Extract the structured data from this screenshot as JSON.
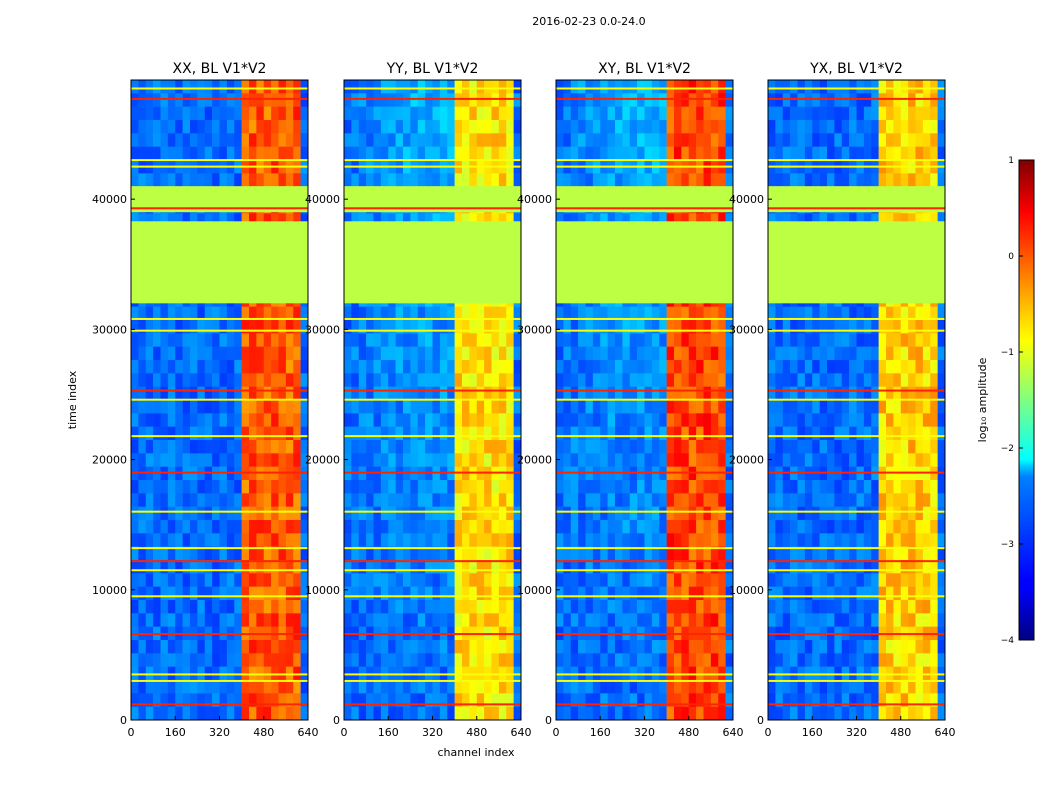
{
  "figure": {
    "suptitle": "2016-02-23 0.0-24.0"
  },
  "chart_data": {
    "type": "heatmap",
    "panels": [
      {
        "title": "XX, BL V1*V2",
        "dominant_band_level": 0.1
      },
      {
        "title": "YY, BL V1*V2",
        "dominant_band_level": -0.6
      },
      {
        "title": "XY, BL V1*V2",
        "dominant_band_level": 0.2
      },
      {
        "title": "YX, BL V1*V2",
        "dominant_band_level": -0.5
      }
    ],
    "xlabel": "channel index",
    "ylabel": "time index",
    "xlim": [
      0,
      640
    ],
    "ylim": [
      0,
      49152
    ],
    "xticks": [
      0,
      160,
      320,
      480,
      640
    ],
    "xtick_labels": [
      "0",
      "160",
      "320",
      "480",
      "640"
    ],
    "yticks": [
      0,
      10000,
      20000,
      30000,
      40000
    ],
    "ytick_labels": [
      "0",
      "10000",
      "20000",
      "30000",
      "40000"
    ],
    "colorbar": {
      "label": "log₁₀ amplitude",
      "range": [
        -4,
        1
      ],
      "ticks": [
        1,
        0,
        -1,
        -2,
        -3,
        -4
      ],
      "tick_labels": [
        "1",
        "0",
        "−1",
        "−2",
        "−3",
        "−4"
      ],
      "colormap": "jet"
    },
    "flagged_time_ranges": [
      [
        32000,
        38300
      ],
      [
        39000,
        41000
      ]
    ],
    "flag_value": -1.2,
    "rfi_channel_range": [
      410,
      610
    ],
    "horizontal_rfi_rows": [
      1200,
      3000,
      3500,
      6600,
      9500,
      11500,
      12200,
      13200,
      16000,
      19000,
      21800,
      24600,
      25300,
      29900,
      30800,
      39300,
      42500,
      43000,
      47700,
      48500
    ]
  },
  "colors": {
    "background": "#ffffff",
    "axis": "#000000"
  }
}
